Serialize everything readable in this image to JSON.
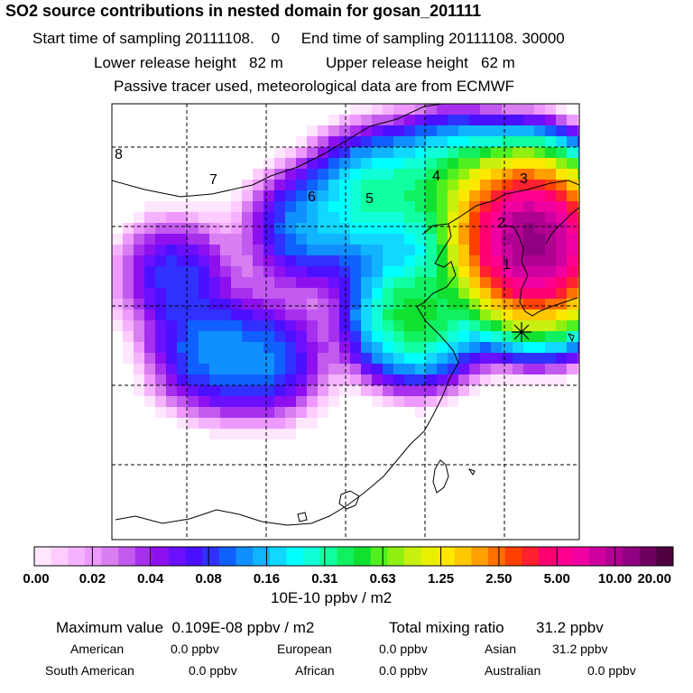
{
  "title": "SO2 source contributions in nested domain for gosan_201111",
  "header": {
    "start_label": "Start time of sampling",
    "start_value": "20111108.    0",
    "end_label": "End time of sampling",
    "end_value": "20111108. 30000",
    "lower_label": "Lower release height",
    "lower_value": "82 m",
    "upper_label": "Upper release height",
    "upper_value": "62 m",
    "tracer_note": "Passive tracer used, meteorological data are from ECMWF"
  },
  "colors": {
    "scale": [
      "#ffe6ff",
      "#ffccff",
      "#f5b3ff",
      "#ee99ff",
      "#d97ff2",
      "#c35af0",
      "#a630ee",
      "#8f10ee",
      "#6a10ff",
      "#4a10ff",
      "#3030ff",
      "#1060ff",
      "#1090ff",
      "#10b4ff",
      "#10d8ff",
      "#00ffff",
      "#10ffd8",
      "#10ffa0",
      "#10f060",
      "#10e030",
      "#50f020",
      "#90f010",
      "#c8f010",
      "#e8f000",
      "#ffe800",
      "#ffc800",
      "#ffa000",
      "#ff7000",
      "#ff4000",
      "#ff2030",
      "#ff0070",
      "#ff0090",
      "#f000a0",
      "#d000a0",
      "#b00090",
      "#900080",
      "#700060",
      "#500040"
    ],
    "coast": "#000000",
    "grid": "#000000"
  },
  "chart_data": {
    "type": "heatmap",
    "title": "SO2 source contributions in nested domain for gosan_201111",
    "colorbar": {
      "tick_labels": [
        "0.00",
        "0.02",
        "0.04",
        "0.08",
        "0.16",
        "0.31",
        "0.63",
        "1.25",
        "2.50",
        "5.00",
        "10.00",
        "20.00"
      ],
      "unit": "10E-10 ppbv / m2"
    },
    "region_labels": [
      "8",
      "7",
      "6",
      "5",
      "4",
      "3",
      "2",
      "1"
    ],
    "station_marker": "Gosan",
    "hotspots": [
      {
        "lon": 112.5,
        "lat": 38.0,
        "level": 0.12
      },
      {
        "lon": 117.0,
        "lat": 40.0,
        "level": 0.3
      },
      {
        "lon": 122.0,
        "lat": 40.8,
        "level": 0.4
      },
      {
        "lon": 126.5,
        "lat": 38.5,
        "level": 3.0
      },
      {
        "lon": 127.0,
        "lat": 37.0,
        "level": 8.0
      },
      {
        "lon": 127.5,
        "lat": 35.5,
        "level": 2.0
      },
      {
        "lon": 119.5,
        "lat": 32.5,
        "level": 0.5
      },
      {
        "lon": 104.0,
        "lat": 35.0,
        "level": 0.08
      },
      {
        "lon": 106.0,
        "lat": 30.0,
        "level": 0.1
      },
      {
        "lon": 110.0,
        "lat": 29.5,
        "level": 0.1
      }
    ]
  },
  "stats": {
    "max_label": "Maximum value",
    "max_value": "0.109E-08 ppbv / m2",
    "total_label": "Total mixing ratio",
    "total_value": "31.2 ppbv",
    "american_label": "American",
    "american_value": "0.0 ppbv",
    "european_label": "European",
    "european_value": "0.0 ppbv",
    "asian_label": "Asian",
    "asian_value": "31.2 ppbv",
    "south_american_label": "South American",
    "south_american_value": "0.0 ppbv",
    "african_label": "African",
    "african_value": "0.0 ppbv",
    "australian_label": "Australian",
    "australian_value": "0.0 ppbv"
  }
}
